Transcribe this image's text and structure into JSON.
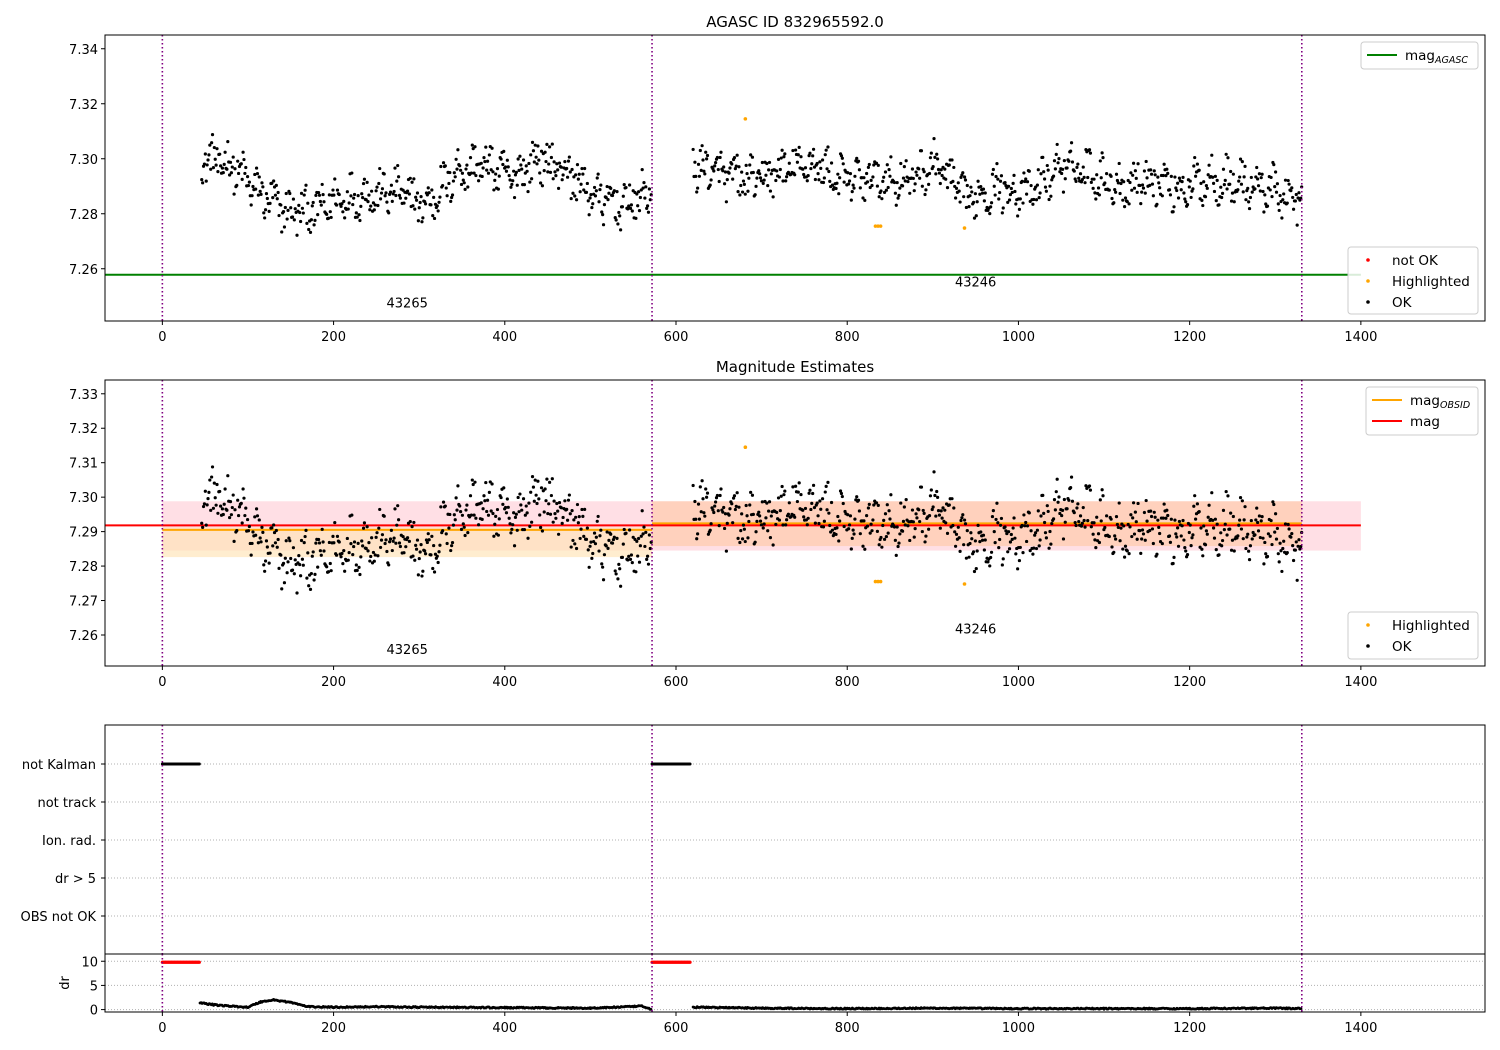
{
  "chart_data": [
    {
      "type": "scatter",
      "title": "AGASC ID 832965592.0",
      "xlim": [
        -67,
        1545
      ],
      "ylim": [
        7.241,
        7.345
      ],
      "x_ticks": [
        0,
        200,
        400,
        600,
        800,
        1000,
        1200,
        1400
      ],
      "y_ticks": [
        7.26,
        7.28,
        7.3,
        7.32,
        7.34
      ],
      "vlines": [
        0,
        572,
        1331
      ],
      "hlines": [
        {
          "name": "mag_AGASC",
          "value": 7.2578,
          "x_range": [
            -67,
            1400
          ],
          "color": "#008000"
        }
      ],
      "annotations": [
        {
          "text": "43265",
          "x": 286,
          "y": 7.246
        },
        {
          "text": "43246",
          "x": 950,
          "y": 7.2535
        }
      ],
      "segments": [
        {
          "obsid": "43265",
          "x_range": [
            46,
            572
          ],
          "levels": [
            7.3,
            7.298,
            7.288,
            7.281,
            7.281,
            7.286,
            7.287,
            7.288,
            7.283,
            7.295,
            7.298,
            7.293,
            7.3,
            7.295,
            7.286,
            7.283,
            7.288
          ]
        },
        {
          "obsid": "43246",
          "x_range": [
            620,
            1331
          ],
          "levels": [
            7.298,
            7.294,
            7.292,
            7.296,
            7.298,
            7.292,
            7.293,
            7.292,
            7.298,
            7.285,
            7.29,
            7.287,
            7.297,
            7.296,
            7.29,
            7.293,
            7.289,
            7.293,
            7.291,
            7.289,
            7.284
          ]
        }
      ],
      "highlighted_points": [
        {
          "x": 681,
          "y": 7.3145
        },
        {
          "x": 833,
          "y": 7.2755
        },
        {
          "x": 836,
          "y": 7.2755
        },
        {
          "x": 839,
          "y": 7.2755
        },
        {
          "x": 937,
          "y": 7.2748
        }
      ],
      "not_ok_points": [],
      "legends": [
        {
          "placement": "top-right",
          "entries": [
            {
              "label": "mag",
              "sub": "AGASC",
              "color": "#008000",
              "kind": "line"
            }
          ]
        },
        {
          "placement": "lower-right",
          "entries": [
            {
              "label": "not OK",
              "color": "#ff0000",
              "kind": "dot"
            },
            {
              "label": "Highlighted",
              "color": "#ffa500",
              "kind": "dot"
            },
            {
              "label": "OK",
              "color": "#000000",
              "kind": "dot"
            }
          ]
        }
      ]
    },
    {
      "type": "scatter",
      "title": "Magnitude Estimates",
      "xlim": [
        -67,
        1545
      ],
      "ylim": [
        7.251,
        7.334
      ],
      "x_ticks": [
        0,
        200,
        400,
        600,
        800,
        1000,
        1200,
        1400
      ],
      "y_ticks": [
        7.26,
        7.27,
        7.28,
        7.29,
        7.3,
        7.31,
        7.32,
        7.33
      ],
      "vlines": [
        0,
        572,
        1331
      ],
      "bands": [
        {
          "name": "mag",
          "x_range": [
            0,
            1400
          ],
          "y_range": [
            7.2845,
            7.2988
          ],
          "color": "#ffc0cb"
        },
        {
          "name": "mag_OBSID 43265",
          "x_range": [
            0,
            572
          ],
          "y_range": [
            7.2826,
            7.2912
          ],
          "color": "#ffe4b5"
        },
        {
          "name": "mag_OBSID 43246",
          "x_range": [
            572,
            1331
          ],
          "y_range": [
            7.2858,
            7.2988
          ],
          "color": "#ffc9a8"
        }
      ],
      "lines": [
        {
          "name": "mag_OBSID",
          "color": "#ffa500",
          "segments": [
            {
              "x": [
                0,
                572
              ],
              "y": 7.2905
            },
            {
              "x": [
                572,
                1331
              ],
              "y": 7.2924
            }
          ]
        },
        {
          "name": "mag",
          "color": "#ff0000",
          "segments": [
            {
              "x": [
                -67,
                1400
              ],
              "y": 7.2918
            }
          ]
        }
      ],
      "annotations": [
        {
          "text": "43265",
          "x": 286,
          "y": 7.2545
        },
        {
          "text": "43246",
          "x": 950,
          "y": 7.2605
        }
      ],
      "segments_from_panel": 0,
      "legends": [
        {
          "placement": "top-right",
          "entries": [
            {
              "label": "mag",
              "sub": "OBSID",
              "color": "#ffa500",
              "kind": "line"
            },
            {
              "label": "mag",
              "color": "#ff0000",
              "kind": "line"
            }
          ]
        },
        {
          "placement": "lower-right",
          "entries": [
            {
              "label": "Highlighted",
              "color": "#ffa500",
              "kind": "dot"
            },
            {
              "label": "OK",
              "color": "#000000",
              "kind": "dot"
            }
          ]
        }
      ]
    },
    {
      "type": "scatter",
      "xlim": [
        -67,
        1545
      ],
      "categories": [
        "not Kalman",
        "not track",
        "Ion. rad.",
        "dr > 5",
        "OBS not OK"
      ],
      "vlines": [
        0,
        572,
        1331
      ],
      "flag_runs": [
        {
          "category": "not Kalman",
          "x_range": [
            0,
            44
          ]
        },
        {
          "category": "not Kalman",
          "x_range": [
            572,
            617
          ]
        }
      ],
      "x_ticks": [
        0,
        200,
        400,
        600,
        800,
        1000,
        1200,
        1400
      ]
    },
    {
      "type": "scatter",
      "ylabel": "dr",
      "xlim": [
        -67,
        1545
      ],
      "ylim": [
        -0.5,
        11.5
      ],
      "y_ticks": [
        0,
        5,
        10
      ],
      "x_ticks": [
        0,
        200,
        400,
        600,
        800,
        1000,
        1200,
        1400
      ],
      "vlines": [
        0,
        572,
        1331
      ],
      "red_runs": [
        {
          "x_range": [
            0,
            44
          ],
          "y": 9.8
        },
        {
          "x_range": [
            572,
            617
          ],
          "y": 9.8
        }
      ],
      "dr_series": {
        "x": [
          44,
          60,
          80,
          100,
          115,
          130,
          150,
          170,
          200,
          250,
          300,
          400,
          500,
          560,
          572,
          620,
          700,
          800,
          900,
          1000,
          1100,
          1200,
          1300,
          1331
        ],
        "y": [
          1.4,
          1.0,
          0.7,
          0.5,
          1.6,
          2.0,
          1.5,
          0.6,
          0.5,
          0.6,
          0.5,
          0.4,
          0.3,
          0.7,
          0.0,
          0.5,
          0.3,
          0.2,
          0.3,
          0.2,
          0.2,
          0.2,
          0.3,
          0.2
        ]
      }
    }
  ]
}
